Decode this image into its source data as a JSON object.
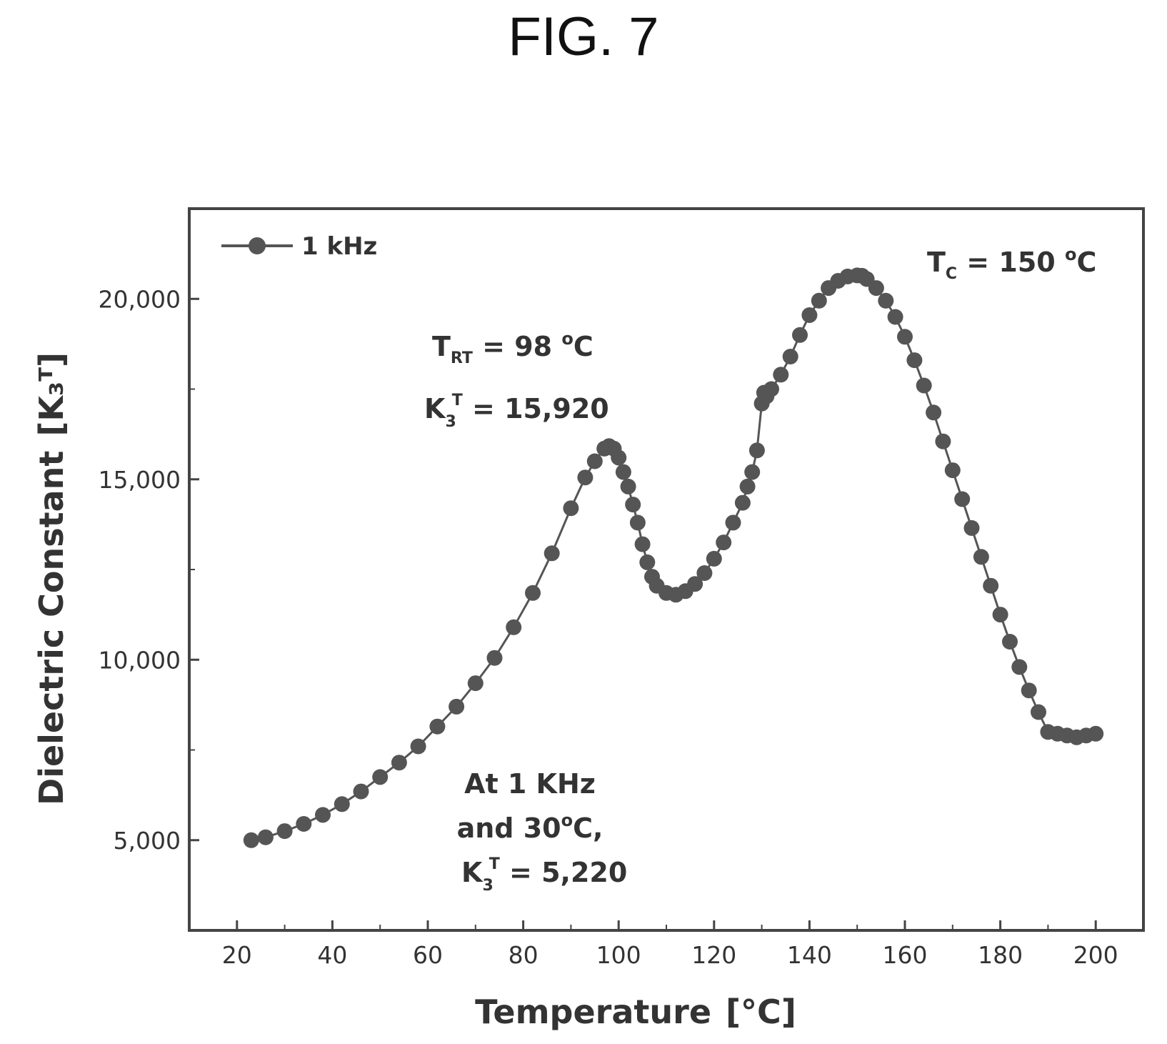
{
  "figure": {
    "label": "FIG. 7"
  },
  "chart_data": {
    "type": "scatter",
    "title": "",
    "xlabel": "Temperature",
    "xlabel_unit": "[°C]",
    "ylabel": "Dielectric Constant",
    "ylabel_unit": "[K₃ᵀ]",
    "xlim": [
      10,
      210
    ],
    "ylim": [
      2500,
      22500
    ],
    "x_ticks": [
      20,
      40,
      60,
      80,
      100,
      120,
      140,
      160,
      180,
      200
    ],
    "x_tick_labels": [
      "20",
      "40",
      "60",
      "80",
      "100",
      "120",
      "140",
      "160",
      "180",
      "200"
    ],
    "y_ticks": [
      5000,
      10000,
      15000,
      20000
    ],
    "y_tick_labels": [
      "5,000",
      "10,000",
      "15,000",
      "20,000"
    ],
    "grid": false,
    "legend": {
      "position": "top-left",
      "entries": [
        "1 kHz"
      ]
    },
    "color": "#555555",
    "series": [
      {
        "name": "1 kHz",
        "x": [
          23,
          26,
          30,
          34,
          38,
          42,
          46,
          50,
          54,
          58,
          62,
          66,
          70,
          74,
          78,
          82,
          86,
          90,
          93,
          95,
          97,
          98,
          99,
          100,
          101,
          102,
          103,
          104,
          105,
          106,
          107,
          108,
          110,
          112,
          114,
          116,
          118,
          120,
          122,
          124,
          126,
          127,
          128,
          129,
          130,
          130.5,
          131,
          132,
          134,
          136,
          138,
          140,
          142,
          144,
          146,
          148,
          150,
          151,
          152,
          154,
          156,
          158,
          160,
          162,
          164,
          166,
          168,
          170,
          172,
          174,
          176,
          178,
          180,
          182,
          184,
          186,
          188,
          190,
          192,
          194,
          196,
          198,
          200
        ],
        "y": [
          5000,
          5080,
          5250,
          5450,
          5700,
          6000,
          6350,
          6750,
          7150,
          7600,
          8150,
          8700,
          9350,
          10050,
          10900,
          11850,
          12950,
          14200,
          15050,
          15500,
          15850,
          15920,
          15850,
          15600,
          15200,
          14800,
          14300,
          13800,
          13200,
          12700,
          12300,
          12050,
          11850,
          11800,
          11900,
          12100,
          12400,
          12800,
          13250,
          13800,
          14350,
          14800,
          15200,
          15800,
          17100,
          17400,
          17300,
          17500,
          17900,
          18400,
          19000,
          19550,
          19950,
          20300,
          20500,
          20620,
          20650,
          20640,
          20550,
          20300,
          19950,
          19500,
          18950,
          18300,
          17600,
          16850,
          16050,
          15250,
          14450,
          13650,
          12850,
          12050,
          11250,
          10500,
          9800,
          9150,
          8550,
          8000,
          7950,
          7900,
          7850,
          7900,
          7950
        ]
      }
    ],
    "annotations": {
      "trt": {
        "main": "T",
        "sub": "RT",
        "rest": " = 98 ",
        "sup": "o",
        "tail": "C"
      },
      "k3_at_trt": {
        "main": "K",
        "sub": "3",
        "sup": "T",
        "rest": " = 15,920"
      },
      "tc": {
        "main": "T",
        "sub": "C",
        "rest": " = 150 ",
        "sup": "o",
        "tail": "C"
      },
      "note_line1": "At 1 KHz",
      "note_line2_a": "and 30",
      "note_line2_sup": "o",
      "note_line2_b": "C,",
      "note_line3": {
        "main": "K",
        "sub": "3",
        "sup": "T",
        "rest": " = 5,220"
      }
    }
  }
}
